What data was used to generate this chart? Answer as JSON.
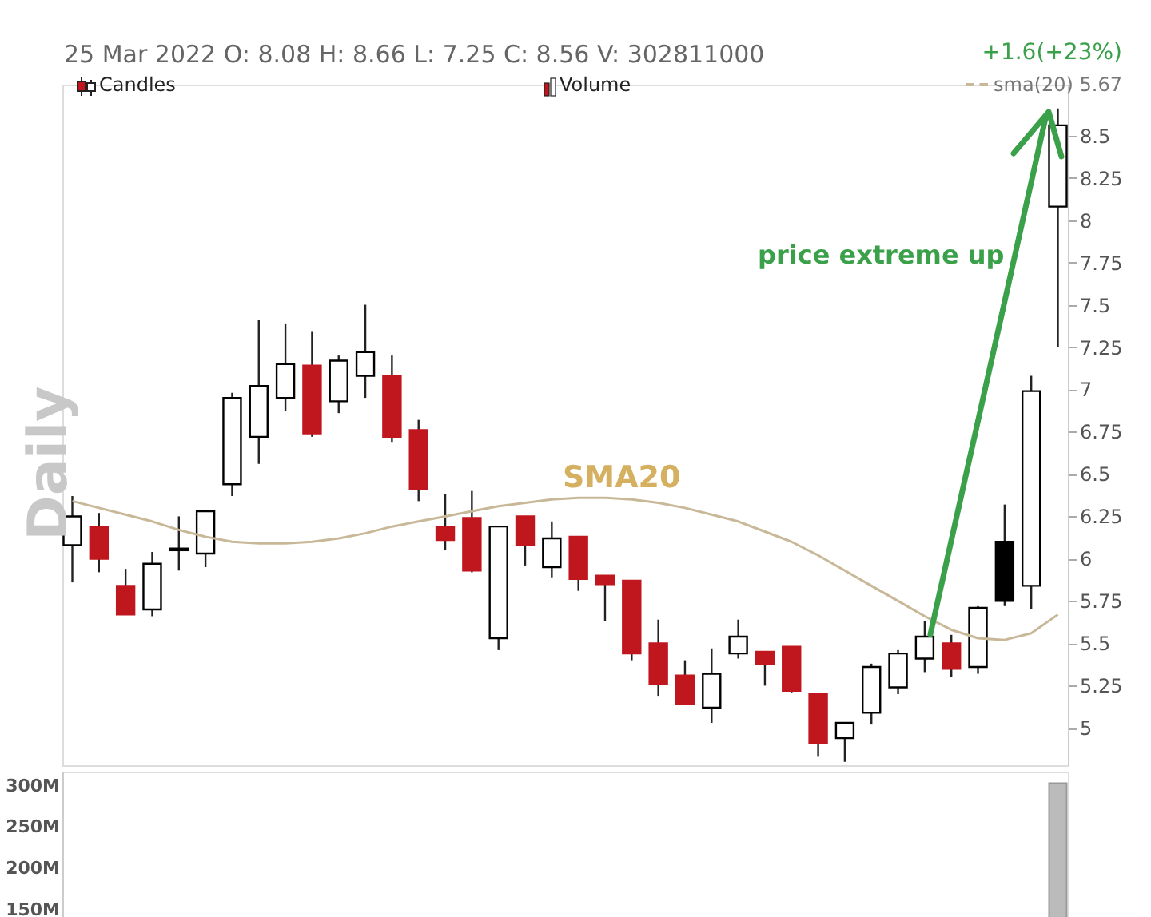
{
  "chart_data": [
    {
      "type": "candlestick",
      "subtitle": "25 Mar 2022    O: 8.08   H: 8.66   L: 7.25   C: 8.56    V: 302811000",
      "ylabel": "Daily",
      "annotations": [
        "+1.6(+23%)",
        "Candles",
        "Volume",
        "SMA20",
        "price extreme up"
      ],
      "categories": [
        null,
        null,
        null,
        null,
        null,
        null,
        null,
        null,
        null,
        null,
        null,
        null,
        null,
        null,
        null,
        null,
        null,
        null,
        null,
        null,
        null,
        null,
        null,
        null,
        null,
        null,
        null,
        null,
        null,
        null,
        null,
        null,
        null,
        null,
        null,
        null,
        null,
        null
      ],
      "ohlc": [
        [
          6.08,
          6.37,
          5.86,
          6.25
        ],
        [
          6.19,
          6.27,
          5.92,
          6.0
        ],
        [
          5.84,
          5.94,
          5.67,
          5.67
        ],
        [
          5.7,
          6.04,
          5.66,
          5.97
        ],
        [
          6.05,
          6.25,
          5.93,
          6.06
        ],
        [
          6.03,
          6.28,
          5.95,
          6.28
        ],
        [
          6.44,
          6.98,
          6.37,
          6.95
        ],
        [
          6.72,
          7.41,
          6.56,
          7.02
        ],
        [
          6.95,
          7.39,
          6.87,
          7.15
        ],
        [
          7.14,
          7.34,
          6.72,
          6.74
        ],
        [
          6.93,
          7.2,
          6.86,
          7.17
        ],
        [
          7.08,
          7.5,
          6.95,
          7.22
        ],
        [
          7.08,
          7.2,
          6.69,
          6.72
        ],
        [
          6.76,
          6.82,
          6.34,
          6.41
        ],
        [
          6.19,
          6.38,
          6.05,
          6.11
        ],
        [
          6.24,
          6.4,
          5.92,
          5.93
        ],
        [
          5.53,
          6.19,
          5.46,
          6.19
        ],
        [
          6.25,
          6.25,
          5.96,
          6.08
        ],
        [
          5.95,
          6.22,
          5.89,
          6.12
        ],
        [
          6.13,
          6.13,
          5.81,
          5.88
        ],
        [
          5.9,
          5.9,
          5.63,
          5.85
        ],
        [
          5.87,
          5.87,
          5.4,
          5.44
        ],
        [
          5.5,
          5.64,
          5.19,
          5.26
        ],
        [
          5.31,
          5.4,
          5.14,
          5.14
        ],
        [
          5.12,
          5.47,
          5.03,
          5.32
        ],
        [
          5.44,
          5.64,
          5.41,
          5.54
        ],
        [
          5.45,
          5.45,
          5.25,
          5.38
        ],
        [
          5.48,
          5.48,
          5.21,
          5.22
        ],
        [
          5.2,
          5.2,
          4.83,
          4.91
        ],
        [
          4.94,
          5.03,
          4.8,
          5.03
        ],
        [
          5.09,
          5.38,
          5.02,
          5.36
        ],
        [
          5.24,
          5.46,
          5.2,
          5.44
        ],
        [
          5.41,
          5.63,
          5.33,
          5.54
        ],
        [
          5.5,
          5.55,
          5.3,
          5.35
        ],
        [
          5.36,
          5.72,
          5.32,
          5.71
        ],
        [
          5.75,
          6.32,
          5.72,
          6.1
        ],
        [
          5.84,
          7.08,
          5.7,
          6.99
        ],
        [
          8.08,
          8.66,
          7.25,
          8.56
        ]
      ],
      "colors": [
        "#ffffff",
        "#c0161e",
        "#c0161e",
        "#ffffff",
        "#ffffff",
        "#ffffff",
        "#ffffff",
        "#ffffff",
        "#ffffff",
        "#c0161e",
        "#ffffff",
        "#ffffff",
        "#c0161e",
        "#c0161e",
        "#c0161e",
        "#c0161e",
        "#ffffff",
        "#c0161e",
        "#ffffff",
        "#c0161e",
        "#c0161e",
        "#c0161e",
        "#c0161e",
        "#c0161e",
        "#ffffff",
        "#ffffff",
        "#c0161e",
        "#c0161e",
        "#c0161e",
        "#ffffff",
        "#ffffff",
        "#ffffff",
        "#ffffff",
        "#c0161e",
        "#ffffff",
        "#000000",
        "#ffffff",
        "#ffffff"
      ],
      "series": [
        {
          "name": "sma(20) 5.67",
          "type": "line",
          "color": "#c9b898",
          "values": [
            6.34,
            6.3,
            6.26,
            6.22,
            6.17,
            6.13,
            6.1,
            6.09,
            6.09,
            6.1,
            6.12,
            6.15,
            6.19,
            6.22,
            6.25,
            6.28,
            6.31,
            6.33,
            6.35,
            6.36,
            6.36,
            6.35,
            6.33,
            6.3,
            6.26,
            6.22,
            6.16,
            6.1,
            6.02,
            5.93,
            5.84,
            5.75,
            5.66,
            5.58,
            5.53,
            5.52,
            5.56,
            5.67
          ]
        }
      ],
      "ylim": [
        4.78,
        8.8
      ],
      "yticks": [
        5,
        5.25,
        5.5,
        5.75,
        6,
        6.25,
        6.5,
        6.75,
        7,
        7.25,
        7.5,
        7.75,
        8,
        8.25,
        8.5
      ],
      "legend": "top right"
    },
    {
      "type": "bar",
      "categories": [
        null,
        null,
        null,
        null,
        null,
        null,
        null,
        null,
        null,
        null,
        null,
        null,
        null,
        null,
        null,
        null,
        null,
        null,
        null,
        null,
        null,
        null,
        null,
        null,
        null,
        null,
        null,
        null,
        null,
        null,
        null,
        null,
        null,
        null,
        null,
        null,
        null,
        null
      ],
      "values": [
        null,
        null,
        null,
        null,
        null,
        null,
        null,
        null,
        null,
        null,
        null,
        null,
        null,
        null,
        null,
        null,
        null,
        null,
        null,
        null,
        null,
        null,
        null,
        null,
        null,
        null,
        null,
        null,
        null,
        null,
        null,
        null,
        null,
        null,
        null,
        null,
        null,
        303
      ],
      "color": "#bbbbbb",
      "ylim": [
        135,
        317
      ],
      "yticks": [
        {
          "value": 150,
          "label": "150M"
        },
        {
          "value": 200,
          "label": "200M"
        },
        {
          "value": 250,
          "label": "250M"
        },
        {
          "value": 300,
          "label": "300M"
        }
      ]
    }
  ]
}
